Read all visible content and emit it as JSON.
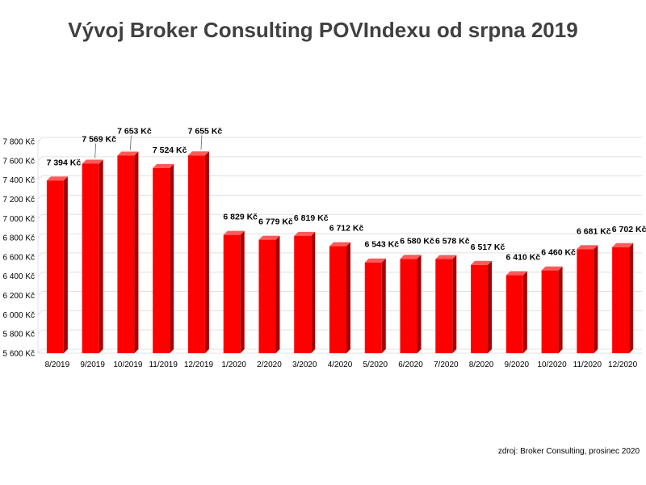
{
  "chart_data": {
    "type": "bar",
    "title": "Vývoj Broker Consulting POVIndexu od srpna 2019",
    "xlabel": "",
    "ylabel": "",
    "ylim": [
      5600,
      7800
    ],
    "ytick_step": 200,
    "ytick_labels": [
      "5 600 Kč",
      "5 800 Kč",
      "6 000 Kč",
      "6 200 Kč",
      "6 400 Kč",
      "6 600 Kč",
      "6 800 Kč",
      "7 000 Kč",
      "7 200 Kč",
      "7 400 Kč",
      "7 600 Kč",
      "7 800 Kč"
    ],
    "grid": true,
    "bar_color": "#ff0000",
    "bar_side_color": "#a80000",
    "bar_top_color": "#ff5a5a",
    "categories": [
      "8/2019",
      "9/2019",
      "10/2019",
      "11/2019",
      "12/2019",
      "1/2020",
      "2/2020",
      "3/2020",
      "4/2020",
      "5/2020",
      "6/2020",
      "7/2020",
      "8/2020",
      "9/2020",
      "10/2020",
      "11/2020",
      "12/2020"
    ],
    "values": [
      7394,
      7569,
      7653,
      7524,
      7655,
      6829,
      6779,
      6819,
      6712,
      6543,
      6580,
      6578,
      6517,
      6410,
      6460,
      6681,
      6702
    ],
    "data_labels": [
      "7 394 Kč",
      "7 569 Kč",
      "7 653 Kč",
      "7 524 Kč",
      "7 655 Kč",
      "6 829 Kč",
      "6 779 Kč",
      "6 819 Kč",
      "6 712 Kč",
      "6 543 Kč",
      "6 580 Kč",
      "6 578 Kč",
      "6 517 Kč",
      "6 410 Kč",
      "6 460 Kč",
      "6 681 Kč",
      "6 702 Kč"
    ]
  },
  "source": "zdroj: Broker Consulting, prosinec 2020"
}
